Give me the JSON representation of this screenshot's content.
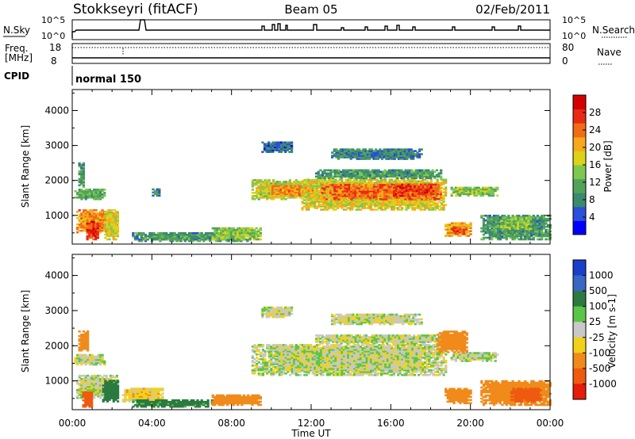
{
  "header": {
    "station": "Stokkseyri (fitACF)",
    "beam": "Beam 05",
    "date": "02/Feb/2011"
  },
  "strip_noise": {
    "left_label": "N.Sky",
    "right_label": "N.Search",
    "left_ticks": [
      "10^5",
      "10^0"
    ],
    "right_ticks": [
      "10^5",
      "10^0"
    ]
  },
  "strip_freq": {
    "left_label": "Freq.",
    "left_unit": "[MHz]",
    "right_label": "Nave",
    "left_ticks": [
      "18",
      "8"
    ],
    "right_ticks": [
      "80",
      "0"
    ]
  },
  "strip_cpid": {
    "left_label": "CPID",
    "mode": "normal 150"
  },
  "time_axis": {
    "xlabel": "Time UT",
    "ticks": [
      "00:00",
      "04:00",
      "08:00",
      "12:00",
      "16:00",
      "20:00",
      "00:00"
    ]
  },
  "power_panel": {
    "ylabel": "Slant Range [km]",
    "yticks": [
      "4000",
      "3000",
      "2000",
      "1000"
    ],
    "colorbar_label": "Power [dB]",
    "colorbar_ticks": [
      "28",
      "24",
      "20",
      "16",
      "12",
      "8",
      "4"
    ],
    "colors": [
      "#0000ff",
      "#2b4fd8",
      "#3a8a6e",
      "#52a35a",
      "#7ec850",
      "#ddd21a",
      "#f7a81b",
      "#f26b17",
      "#e82b14",
      "#d40000"
    ]
  },
  "velocity_panel": {
    "ylabel": "Slant Range [km]",
    "yticks": [
      "4000",
      "3000",
      "2000",
      "1000"
    ],
    "colorbar_label": "Velocity [m s-1]",
    "colorbar_ticks": [
      "1000",
      "500",
      "100",
      "25",
      "-25",
      "-100",
      "-500",
      "-1000"
    ],
    "colors": [
      "#1a3fc8",
      "#3a66c4",
      "#2b7a40",
      "#5bc646",
      "#c8c8c8",
      "#f2d11c",
      "#f08a1a",
      "#ee5b10",
      "#e51b0b"
    ]
  },
  "chart_data": [
    {
      "type": "heatmap",
      "title": "Power",
      "x_range_hours": [
        0,
        24
      ],
      "y_range_km": [
        180,
        4600
      ],
      "value_range_db": [
        0,
        32
      ],
      "regions": [
        {
          "t0": 0.1,
          "t1": 1.6,
          "r0": 1450,
          "r1": 1750,
          "value": 12
        },
        {
          "t0": 0.3,
          "t1": 0.6,
          "r0": 1800,
          "r1": 2500,
          "value": 10
        },
        {
          "t0": 0.2,
          "t1": 2.2,
          "r0": 500,
          "r1": 1150,
          "value": 22
        },
        {
          "t0": 0.7,
          "t1": 1.3,
          "r0": 300,
          "r1": 800,
          "value": 27
        },
        {
          "t0": 1.6,
          "t1": 2.3,
          "r0": 300,
          "r1": 1100,
          "value": 18
        },
        {
          "t0": 4.0,
          "t1": 4.4,
          "r0": 1550,
          "r1": 1750,
          "value": 8
        },
        {
          "t0": 3.0,
          "t1": 9.0,
          "r0": 250,
          "r1": 500,
          "value": 10
        },
        {
          "t0": 7.0,
          "t1": 9.5,
          "r0": 300,
          "r1": 650,
          "value": 14
        },
        {
          "t0": 9.0,
          "t1": 12.5,
          "r0": 1450,
          "r1": 2000,
          "value": 16
        },
        {
          "t0": 10.0,
          "t1": 12.0,
          "r0": 1550,
          "r1": 1850,
          "value": 22
        },
        {
          "t0": 11.5,
          "t1": 18.8,
          "r0": 1150,
          "r1": 2050,
          "value": 18
        },
        {
          "t0": 12.5,
          "t1": 18.5,
          "r0": 1450,
          "r1": 1900,
          "value": 24
        },
        {
          "t0": 16.0,
          "t1": 18.3,
          "r0": 1550,
          "r1": 1900,
          "value": 26
        },
        {
          "t0": 12.2,
          "t1": 18.5,
          "r0": 2050,
          "r1": 2300,
          "value": 10
        },
        {
          "t0": 13.0,
          "t1": 17.5,
          "r0": 2600,
          "r1": 2900,
          "value": 8
        },
        {
          "t0": 9.5,
          "t1": 11.0,
          "r0": 2800,
          "r1": 3100,
          "value": 6
        },
        {
          "t0": 19.0,
          "t1": 21.3,
          "r0": 1550,
          "r1": 1800,
          "value": 14
        },
        {
          "t0": 18.7,
          "t1": 20.0,
          "r0": 400,
          "r1": 800,
          "value": 20
        },
        {
          "t0": 19.0,
          "t1": 19.8,
          "r0": 450,
          "r1": 650,
          "value": 25
        },
        {
          "t0": 20.5,
          "t1": 24.0,
          "r0": 300,
          "r1": 1000,
          "value": 10
        },
        {
          "t0": 21.5,
          "t1": 23.0,
          "r0": 600,
          "r1": 950,
          "value": 14
        }
      ]
    },
    {
      "type": "heatmap",
      "title": "Velocity",
      "x_range_hours": [
        0,
        24
      ],
      "y_range_km": [
        180,
        4600
      ],
      "value_range_ms": [
        -1000,
        1000
      ],
      "regions": [
        {
          "t0": 0.1,
          "t1": 1.6,
          "r0": 1450,
          "r1": 1750,
          "value": 0
        },
        {
          "t0": 0.2,
          "t1": 2.2,
          "r0": 500,
          "r1": 1150,
          "value": 0
        },
        {
          "t0": 0.3,
          "t1": 0.8,
          "r0": 1850,
          "r1": 2400,
          "value": -300
        },
        {
          "t0": 0.5,
          "t1": 1.0,
          "r0": 250,
          "r1": 700,
          "value": -600
        },
        {
          "t0": 1.5,
          "t1": 2.3,
          "r0": 400,
          "r1": 1000,
          "value": 200
        },
        {
          "t0": 2.5,
          "t1": 4.5,
          "r0": 400,
          "r1": 800,
          "value": -60
        },
        {
          "t0": 3.0,
          "t1": 7.0,
          "r0": 250,
          "r1": 450,
          "value": 150
        },
        {
          "t0": 7.0,
          "t1": 9.5,
          "r0": 300,
          "r1": 600,
          "value": -300
        },
        {
          "t0": 9.0,
          "t1": 18.8,
          "r0": 1150,
          "r1": 2050,
          "value": 0
        },
        {
          "t0": 12.2,
          "t1": 18.5,
          "r0": 2050,
          "r1": 2300,
          "value": 0
        },
        {
          "t0": 13.0,
          "t1": 17.5,
          "r0": 2600,
          "r1": 2900,
          "value": 0
        },
        {
          "t0": 9.5,
          "t1": 11.0,
          "r0": 2800,
          "r1": 3100,
          "value": 0
        },
        {
          "t0": 19.0,
          "t1": 21.3,
          "r0": 1550,
          "r1": 1800,
          "value": 0
        },
        {
          "t0": 18.3,
          "t1": 19.8,
          "r0": 1800,
          "r1": 2400,
          "value": -300
        },
        {
          "t0": 18.7,
          "t1": 20.0,
          "r0": 350,
          "r1": 800,
          "value": -400
        },
        {
          "t0": 20.5,
          "t1": 24.0,
          "r0": 300,
          "r1": 1000,
          "value": -400
        },
        {
          "t0": 22.0,
          "t1": 23.5,
          "r0": 400,
          "r1": 800,
          "value": -700
        }
      ]
    }
  ]
}
